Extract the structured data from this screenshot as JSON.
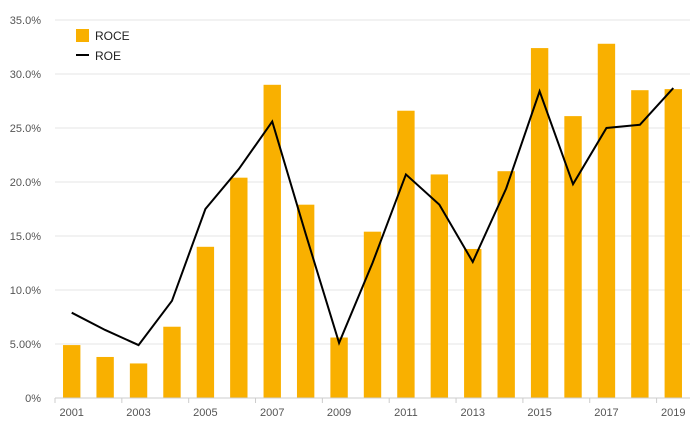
{
  "chart_data": {
    "type": "bar",
    "title": "",
    "xlabel": "",
    "ylabel": "",
    "categories": [
      "2001",
      "2002",
      "2003",
      "2004",
      "2005",
      "2006",
      "2007",
      "2008",
      "2009",
      "2010",
      "2011",
      "2012",
      "2013",
      "2014",
      "2015",
      "2016",
      "2017",
      "2018",
      "2019"
    ],
    "x_tick_labels": [
      "2001",
      "2003",
      "2005",
      "2007",
      "2009",
      "2011",
      "2013",
      "2015",
      "2017",
      "2019"
    ],
    "y_tick_labels": [
      "0%",
      "5.00%",
      "10.0%",
      "15.0%",
      "20.0%",
      "25.0%",
      "30.0%",
      "35.0%"
    ],
    "y_ticks": [
      0,
      5,
      10,
      15,
      20,
      25,
      30,
      35
    ],
    "ylim": [
      0,
      35
    ],
    "grid": true,
    "legend_position": "top-left",
    "series": [
      {
        "name": "ROCE",
        "type": "bar",
        "color": "#f9b000",
        "values": [
          4.9,
          3.8,
          3.2,
          6.6,
          14.0,
          20.4,
          29.0,
          17.9,
          5.6,
          15.4,
          26.6,
          20.7,
          13.8,
          21.0,
          32.4,
          26.1,
          32.8,
          28.5,
          28.6
        ]
      },
      {
        "name": "ROE",
        "type": "line",
        "color": "#000000",
        "values": [
          7.9,
          6.3,
          4.9,
          9.0,
          17.5,
          21.2,
          25.6,
          15.2,
          5.1,
          12.5,
          20.7,
          17.9,
          12.6,
          19.4,
          28.4,
          19.8,
          25.0,
          25.3,
          28.7
        ]
      }
    ]
  }
}
